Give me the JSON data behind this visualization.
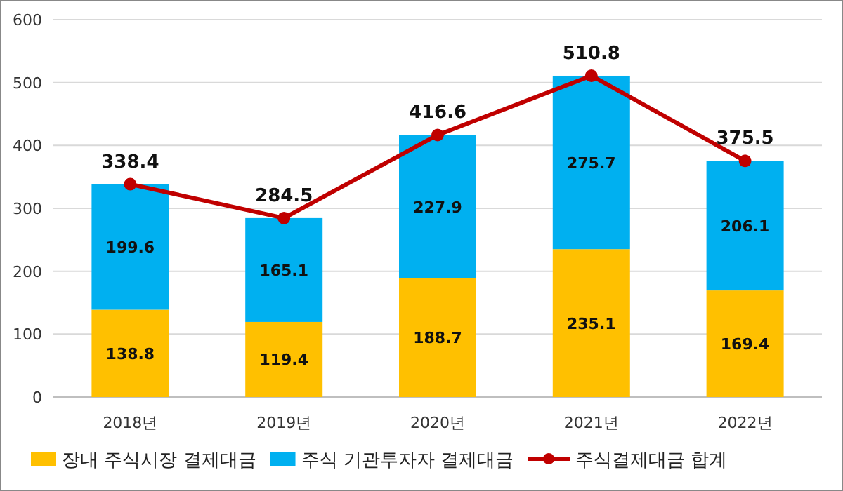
{
  "chart_data": {
    "type": "bar",
    "stacked": true,
    "categories": [
      "2018년",
      "2019년",
      "2020년",
      "2021년",
      "2022년"
    ],
    "series": [
      {
        "name": "장내 주식시장 결제대금",
        "color": "#ffc000",
        "values": [
          138.8,
          119.4,
          188.7,
          235.1,
          169.4
        ]
      },
      {
        "name": "주식 기관투자자 결제대금",
        "color": "#00b0f0",
        "values": [
          199.6,
          165.1,
          227.9,
          275.7,
          206.1
        ]
      },
      {
        "name": "주식결제대금 합계",
        "type": "line",
        "color": "#c00000",
        "values": [
          338.4,
          284.5,
          416.6,
          510.8,
          375.5
        ]
      }
    ],
    "ylim": [
      0,
      600
    ],
    "yticks": [
      0,
      100,
      200,
      300,
      400,
      500,
      600
    ],
    "grid": "y",
    "legend": "bottom",
    "marker": "circle",
    "data_labels": true
  }
}
